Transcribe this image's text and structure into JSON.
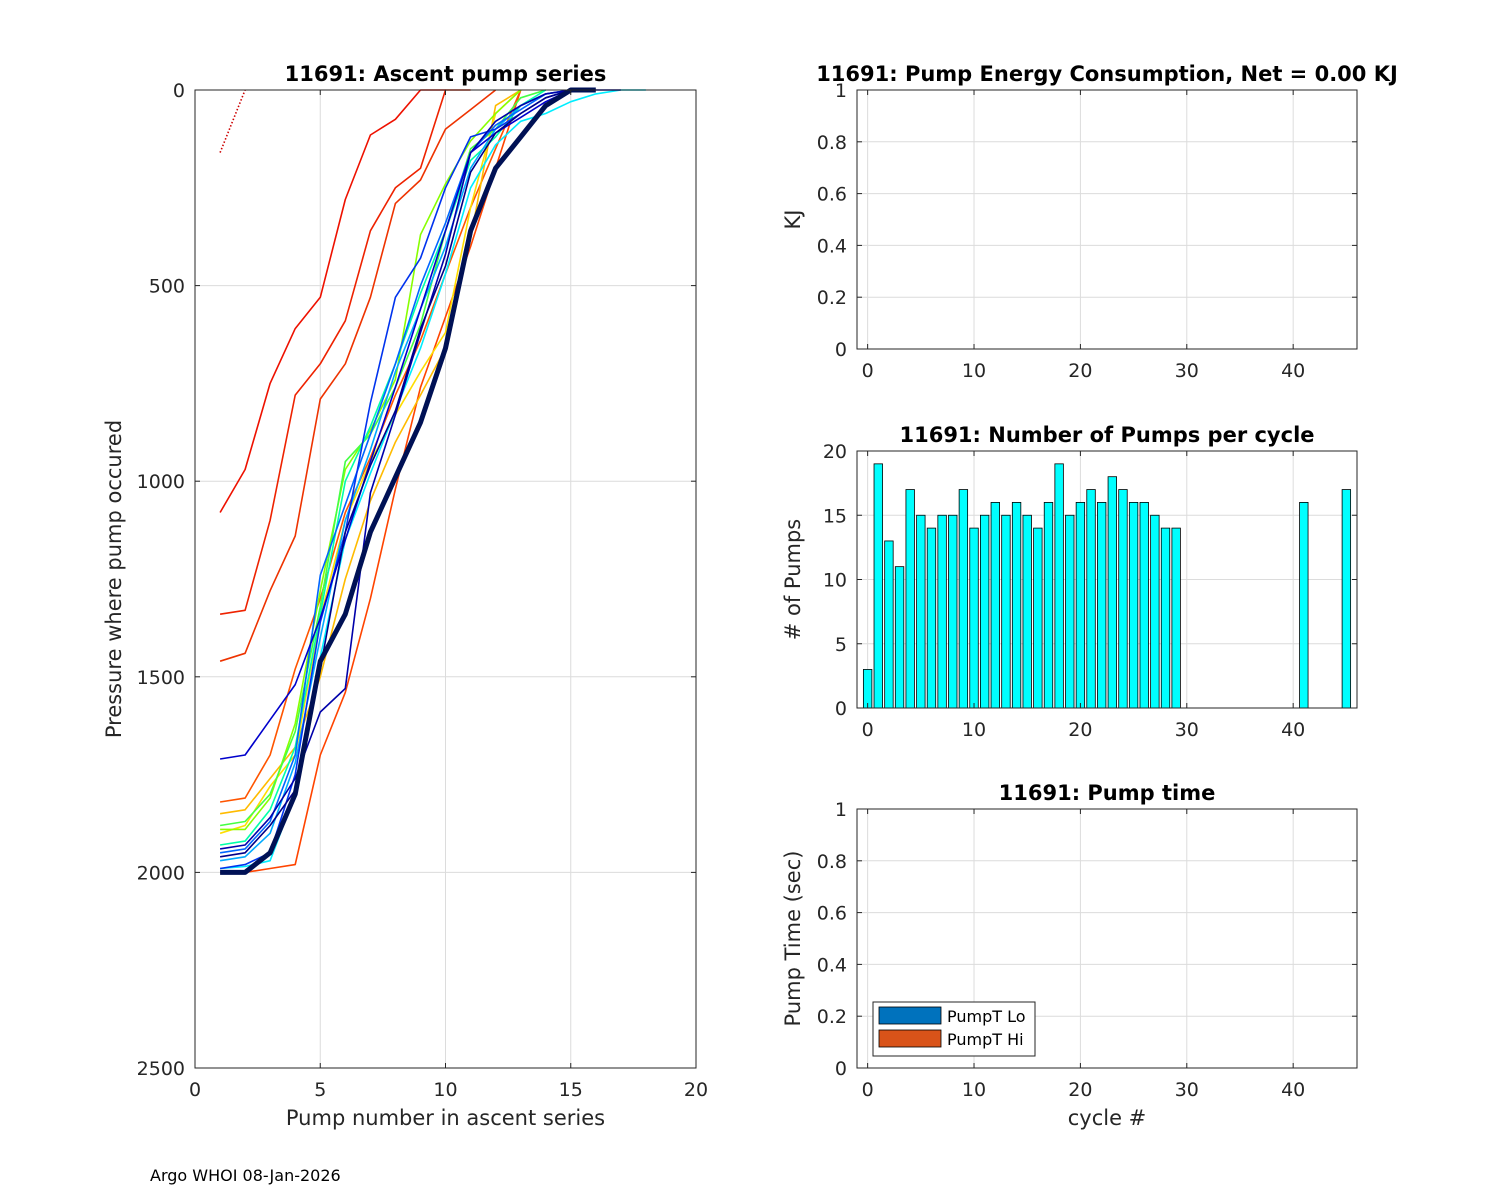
{
  "footer": "Argo WHOI 08-Jan-2026",
  "colors": {
    "bar_fill": "#00ffff",
    "bar_edge": "#000000",
    "grid": "#dcdcdc",
    "axis": "#262626",
    "legend_lo": "#0072bd",
    "legend_hi": "#d95319"
  },
  "chart_data": [
    {
      "id": "ascent",
      "type": "line",
      "title": "11691: Ascent pump series",
      "xlabel": "Pump number in ascent series",
      "ylabel": "Pressure where pump occured",
      "xlim": [
        0,
        20
      ],
      "ylim": [
        0,
        2500
      ],
      "y_reversed": true,
      "xticks": [
        0,
        5,
        10,
        15,
        20
      ],
      "yticks": [
        0,
        500,
        1000,
        1500,
        2000,
        2500
      ],
      "grid": true,
      "series": [
        {
          "color": "#cc0000",
          "dotted": true,
          "x": [
            1,
            1.5,
            2
          ],
          "y": [
            160,
            80,
            0
          ]
        },
        {
          "color": "#ee1100",
          "x": [
            1,
            2,
            3,
            4,
            5,
            6,
            7,
            8,
            9,
            10
          ],
          "y": [
            1080,
            970,
            750,
            610,
            530,
            280,
            115,
            75,
            0,
            0
          ]
        },
        {
          "color": "#ee2200",
          "x": [
            1,
            2,
            3,
            4,
            5,
            6,
            7,
            8,
            9,
            10,
            11
          ],
          "y": [
            1340,
            1330,
            1100,
            780,
            700,
            590,
            360,
            250,
            200,
            0,
            0
          ]
        },
        {
          "color": "#ee3300",
          "x": [
            1,
            2,
            3,
            4,
            5,
            6,
            7,
            8,
            9,
            10,
            11,
            12
          ],
          "y": [
            1460,
            1440,
            1280,
            1140,
            790,
            700,
            530,
            290,
            230,
            100,
            50,
            0
          ]
        },
        {
          "color": "#ff4400",
          "x": [
            1,
            2,
            3,
            4,
            5,
            6,
            7,
            8,
            9,
            10,
            11,
            12,
            13
          ],
          "y": [
            2000,
            2000,
            1990,
            1980,
            1700,
            1540,
            1300,
            1020,
            760,
            580,
            400,
            200,
            0
          ]
        },
        {
          "color": "#ff5500",
          "x": [
            1,
            2,
            3,
            4,
            5,
            6,
            7,
            8,
            9,
            10,
            11,
            12,
            13
          ],
          "y": [
            1820,
            1810,
            1700,
            1480,
            1300,
            1080,
            940,
            780,
            640,
            470,
            300,
            150,
            0
          ]
        },
        {
          "color": "#ffbb00",
          "x": [
            1,
            2,
            3,
            4,
            5,
            6,
            7,
            8,
            9,
            10,
            11,
            12,
            13
          ],
          "y": [
            1850,
            1840,
            1760,
            1680,
            1500,
            1250,
            1050,
            900,
            780,
            660,
            380,
            40,
            0
          ]
        },
        {
          "color": "#ffdd00",
          "x": [
            1,
            2,
            3,
            4,
            5,
            6,
            7,
            8,
            9,
            10,
            11,
            12,
            13
          ],
          "y": [
            1900,
            1880,
            1780,
            1700,
            1350,
            1100,
            950,
            830,
            720,
            620,
            300,
            60,
            0
          ]
        },
        {
          "color": "#88ff00",
          "x": [
            1,
            2,
            3,
            4,
            5,
            6,
            7,
            8,
            9,
            10,
            11,
            12,
            13
          ],
          "y": [
            1890,
            1890,
            1810,
            1620,
            1280,
            970,
            870,
            740,
            370,
            240,
            130,
            60,
            0
          ]
        },
        {
          "color": "#44ff44",
          "x": [
            1,
            2,
            3,
            4,
            5,
            6,
            7,
            8,
            9,
            10,
            11,
            12,
            13,
            14
          ],
          "y": [
            1880,
            1870,
            1800,
            1640,
            1320,
            950,
            880,
            760,
            600,
            360,
            150,
            100,
            20,
            0
          ]
        },
        {
          "color": "#00ffaa",
          "x": [
            1,
            2,
            3,
            4,
            5,
            6,
            7,
            8,
            9,
            10,
            11,
            12,
            13,
            14
          ],
          "y": [
            1930,
            1920,
            1840,
            1680,
            1340,
            1000,
            860,
            700,
            520,
            360,
            180,
            120,
            40,
            0
          ]
        },
        {
          "color": "#00eeff",
          "x": [
            1,
            2,
            3,
            4,
            5,
            6,
            7,
            8,
            9,
            10,
            11,
            12,
            13,
            14,
            15,
            16,
            17,
            18
          ],
          "y": [
            1990,
            1985,
            1970,
            1800,
            1450,
            1150,
            980,
            820,
            660,
            470,
            250,
            140,
            80,
            60,
            30,
            10,
            0,
            0
          ]
        },
        {
          "color": "#00aaff",
          "x": [
            1,
            2,
            3,
            4,
            5,
            6,
            7,
            8,
            9,
            10,
            11,
            12,
            13,
            14,
            15
          ],
          "y": [
            1970,
            1960,
            1900,
            1720,
            1400,
            1100,
            920,
            720,
            560,
            400,
            200,
            100,
            40,
            10,
            0
          ]
        },
        {
          "color": "#0066ff",
          "x": [
            1,
            2,
            3,
            4,
            5,
            6,
            7,
            8,
            9,
            10,
            11,
            12,
            13,
            14,
            15
          ],
          "y": [
            1950,
            1940,
            1870,
            1700,
            1240,
            1060,
            880,
            700,
            500,
            340,
            160,
            90,
            50,
            10,
            0
          ]
        },
        {
          "color": "#0033ee",
          "x": [
            1,
            2,
            3,
            4,
            5,
            6,
            7,
            8,
            9,
            10,
            11,
            12,
            13,
            14,
            15
          ],
          "y": [
            1990,
            1980,
            1950,
            1750,
            1360,
            1130,
            800,
            530,
            430,
            250,
            120,
            100,
            60,
            20,
            0
          ]
        },
        {
          "color": "#0000cc",
          "x": [
            1,
            2,
            3,
            4,
            5,
            6,
            7,
            8,
            9,
            10,
            11,
            12,
            13,
            14,
            15
          ],
          "y": [
            1710,
            1700,
            1610,
            1520,
            1350,
            1150,
            950,
            760,
            560,
            360,
            160,
            110,
            70,
            30,
            0
          ]
        },
        {
          "color": "#0000aa",
          "x": [
            1,
            2,
            3,
            4,
            5,
            6,
            7,
            8,
            9,
            10,
            11,
            12,
            13,
            14,
            15,
            16,
            17
          ],
          "y": [
            1940,
            1930,
            1860,
            1760,
            1590,
            1530,
            1030,
            830,
            620,
            420,
            160,
            80,
            40,
            10,
            0,
            0,
            0
          ]
        },
        {
          "color": "#000088",
          "x": [
            1,
            2,
            3,
            4,
            5,
            6,
            7,
            8,
            9,
            10,
            11,
            12,
            13,
            14,
            15
          ],
          "y": [
            1960,
            1950,
            1880,
            1790,
            1480,
            1130,
            960,
            820,
            610,
            450,
            210,
            110,
            60,
            20,
            0
          ]
        },
        {
          "color": "#001155",
          "width": 5,
          "x": [
            1,
            2,
            3,
            4,
            5,
            6,
            7,
            8,
            9,
            10,
            11,
            12,
            13,
            14,
            15,
            16
          ],
          "y": [
            2000,
            2000,
            1950,
            1800,
            1460,
            1340,
            1130,
            990,
            850,
            660,
            360,
            200,
            120,
            40,
            0,
            0
          ]
        }
      ]
    },
    {
      "id": "energy",
      "type": "bar",
      "title": "11691: Pump Energy Consumption,  Net =   0.00 KJ",
      "xlabel": "",
      "ylabel": "KJ",
      "xlim": [
        -1,
        46
      ],
      "ylim": [
        0,
        1
      ],
      "xticks": [
        0,
        10,
        20,
        30,
        40
      ],
      "yticks": [
        0,
        0.2,
        0.4,
        0.6,
        0.8,
        1
      ],
      "ytick_labels": [
        "0",
        "0.2",
        "0.4",
        "0.6",
        "0.8",
        "1"
      ],
      "grid": true,
      "x": [],
      "values": []
    },
    {
      "id": "pumps",
      "type": "bar",
      "title": "11691: Number of Pumps per cycle",
      "xlabel": "",
      "ylabel": "# of Pumps",
      "xlim": [
        -1,
        46
      ],
      "ylim": [
        0,
        20
      ],
      "xticks": [
        0,
        10,
        20,
        30,
        40
      ],
      "yticks": [
        0,
        5,
        10,
        15,
        20
      ],
      "grid": true,
      "x": [
        0,
        1,
        2,
        3,
        4,
        5,
        6,
        7,
        8,
        9,
        10,
        11,
        12,
        13,
        14,
        15,
        16,
        17,
        18,
        19,
        20,
        21,
        22,
        23,
        24,
        25,
        26,
        27,
        28,
        29,
        41,
        45
      ],
      "values": [
        3,
        19,
        13,
        11,
        17,
        15,
        14,
        15,
        15,
        17,
        14,
        15,
        16,
        15,
        16,
        15,
        14,
        16,
        19,
        15,
        16,
        17,
        16,
        18,
        17,
        16,
        16,
        15,
        14,
        14,
        16,
        17
      ]
    },
    {
      "id": "pumptime",
      "type": "bar",
      "title": "11691: Pump time",
      "xlabel": "cycle #",
      "ylabel": "Pump Time (sec)",
      "xlim": [
        -1,
        46
      ],
      "ylim": [
        0,
        1
      ],
      "xticks": [
        0,
        10,
        20,
        30,
        40
      ],
      "yticks": [
        0,
        0.2,
        0.4,
        0.6,
        0.8,
        1
      ],
      "ytick_labels": [
        "0",
        "0.2",
        "0.4",
        "0.6",
        "0.8",
        "1"
      ],
      "grid": true,
      "legend": [
        "PumpT Lo",
        "PumpT Hi"
      ],
      "legend_position": "bottom-left",
      "series": []
    }
  ]
}
